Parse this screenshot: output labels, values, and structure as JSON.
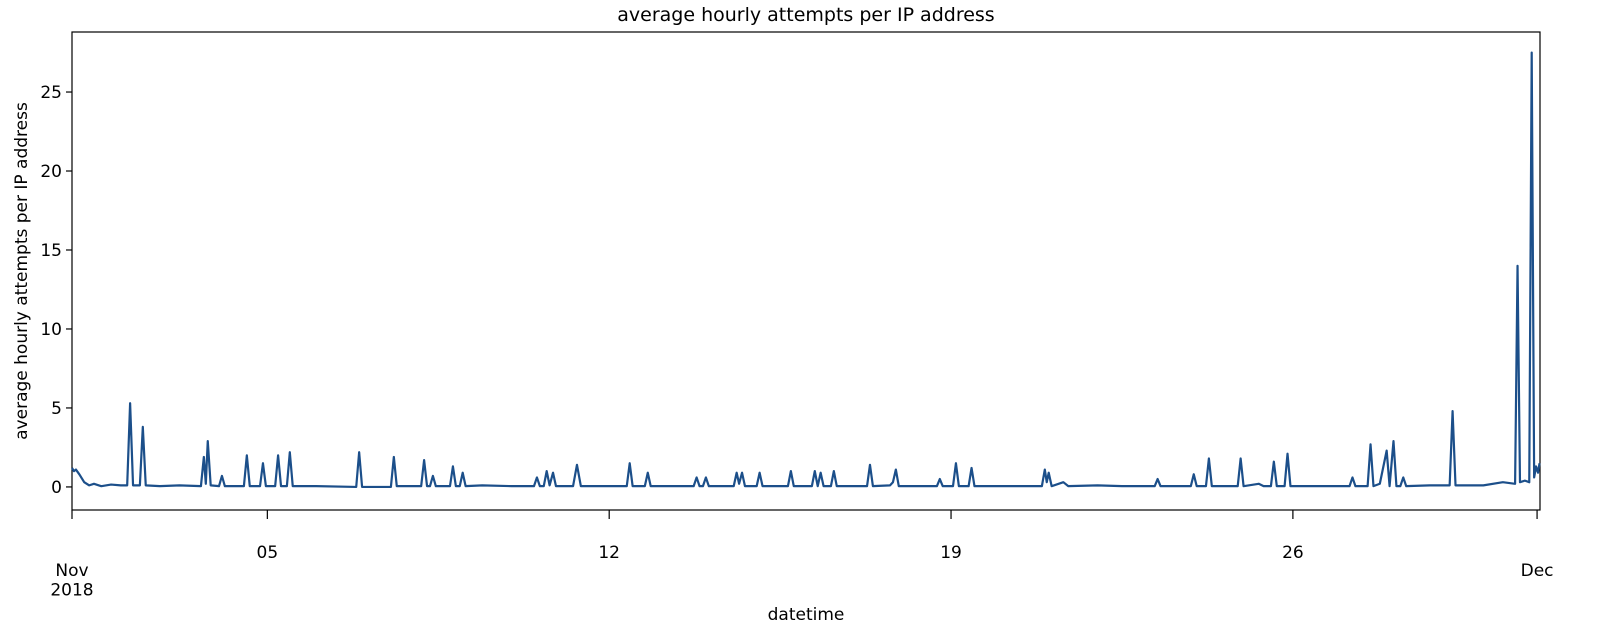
{
  "chart_data": {
    "type": "line",
    "title": "average hourly attempts per IP address",
    "x_label": "datetime",
    "y_label": "average hourly attempts per IP address",
    "xlim": [
      0,
      30.06
    ],
    "ylim": [
      -1.46,
      28.8
    ],
    "xticks": [
      {
        "value": 0,
        "label": "Nov\n2018"
      },
      {
        "value": 4,
        "label": "05"
      },
      {
        "value": 11,
        "label": "12"
      },
      {
        "value": 18,
        "label": "19"
      },
      {
        "value": 25,
        "label": "26"
      },
      {
        "value": 30,
        "label": "Dec"
      }
    ],
    "yticks": [
      0,
      5,
      10,
      15,
      20,
      25
    ],
    "grid": false,
    "series": [
      {
        "color": "#1c4f8a",
        "x": [
          0,
          0.04,
          0.08,
          0.15,
          0.25,
          0.35,
          0.45,
          0.6,
          0.8,
          1.0,
          1.13,
          1.19,
          1.25,
          1.39,
          1.45,
          1.51,
          1.8,
          2.2,
          2.64,
          2.7,
          2.74,
          2.78,
          2.84,
          3.01,
          3.07,
          3.13,
          3.52,
          3.58,
          3.64,
          3.85,
          3.91,
          3.97,
          4.16,
          4.22,
          4.28,
          4.4,
          4.46,
          4.52,
          5.0,
          5.82,
          5.88,
          5.94,
          6.53,
          6.59,
          6.65,
          7.15,
          7.21,
          7.27,
          7.33,
          7.39,
          7.45,
          7.74,
          7.8,
          7.86,
          7.94,
          8.0,
          8.06,
          8.4,
          9.0,
          9.46,
          9.52,
          9.58,
          9.66,
          9.72,
          9.78,
          9.85,
          9.91,
          10.26,
          10.34,
          10.42,
          10.9,
          11.36,
          11.42,
          11.48,
          11.73,
          11.79,
          11.85,
          12.3,
          12.73,
          12.79,
          12.85,
          12.92,
          12.98,
          13.04,
          13.55,
          13.61,
          13.66,
          13.72,
          13.78,
          14.02,
          14.08,
          14.14,
          14.66,
          14.72,
          14.78,
          15.15,
          15.21,
          15.27,
          15.33,
          15.39,
          15.54,
          15.6,
          15.66,
          16.28,
          16.34,
          16.4,
          16.75,
          16.81,
          16.87,
          16.93,
          17.5,
          17.71,
          17.77,
          17.83,
          18.04,
          18.1,
          18.16,
          18.36,
          18.42,
          18.48,
          18.9,
          19.86,
          19.92,
          19.96,
          20.0,
          20.06,
          20.3,
          20.4,
          21.0,
          21.5,
          22.17,
          22.23,
          22.29,
          22.91,
          22.97,
          23.03,
          23.22,
          23.28,
          23.34,
          23.87,
          23.93,
          23.99,
          24.3,
          24.4,
          24.55,
          24.61,
          24.67,
          24.83,
          24.89,
          24.95,
          25.6,
          26.16,
          26.22,
          26.28,
          26.53,
          26.59,
          26.65,
          26.78,
          26.92,
          26.98,
          27.06,
          27.12,
          27.2,
          27.26,
          27.32,
          27.8,
          28.21,
          28.27,
          28.33,
          28.9,
          29.3,
          29.55,
          29.6,
          29.65,
          29.75,
          29.84,
          29.89,
          29.94,
          29.98,
          30.02,
          30.05
        ],
        "values": [
          1.2,
          1.0,
          1.1,
          0.8,
          0.3,
          0.1,
          0.2,
          0.05,
          0.15,
          0.1,
          0.1,
          5.3,
          0.1,
          0.1,
          3.8,
          0.1,
          0.05,
          0.1,
          0.05,
          1.9,
          0.2,
          2.9,
          0.1,
          0.05,
          0.7,
          0.05,
          0.05,
          2.0,
          0.05,
          0.05,
          1.5,
          0.05,
          0.05,
          2.0,
          0.05,
          0.05,
          2.2,
          0.05,
          0.05,
          0,
          2.2,
          0,
          0,
          1.9,
          0.05,
          0.05,
          1.7,
          0.05,
          0.05,
          0.7,
          0.05,
          0.05,
          1.3,
          0.05,
          0.05,
          0.9,
          0.05,
          0.1,
          0.05,
          0.05,
          0.6,
          0.05,
          0.05,
          1.0,
          0.1,
          0.9,
          0.05,
          0.05,
          1.4,
          0.05,
          0.05,
          0.05,
          1.5,
          0.05,
          0.05,
          0.9,
          0.05,
          0.05,
          0.05,
          0.6,
          0.05,
          0.05,
          0.6,
          0.05,
          0.05,
          0.9,
          0.2,
          0.9,
          0.05,
          0.05,
          0.9,
          0.05,
          0.05,
          1.0,
          0.05,
          0.05,
          1.0,
          0.05,
          0.9,
          0.05,
          0.05,
          1.0,
          0.05,
          0.05,
          1.4,
          0.05,
          0.1,
          0.3,
          1.1,
          0.05,
          0.05,
          0.05,
          0.5,
          0.05,
          0.05,
          1.5,
          0.05,
          0.05,
          1.2,
          0.05,
          0.05,
          0.05,
          1.1,
          0.3,
          0.9,
          0.05,
          0.3,
          0.05,
          0.1,
          0.05,
          0.05,
          0.5,
          0.05,
          0.05,
          0.8,
          0.05,
          0.05,
          1.8,
          0.05,
          0.05,
          1.8,
          0.05,
          0.2,
          0.05,
          0.05,
          1.6,
          0.05,
          0.05,
          2.1,
          0.05,
          0.05,
          0.05,
          0.6,
          0.05,
          0.05,
          2.7,
          0.05,
          0.2,
          2.3,
          0.05,
          2.9,
          0.05,
          0.05,
          0.6,
          0.05,
          0.1,
          0.1,
          4.8,
          0.1,
          0.1,
          0.3,
          0.2,
          14.0,
          0.3,
          0.4,
          0.3,
          27.5,
          0.6,
          1.3,
          0.9,
          1.5
        ]
      }
    ]
  }
}
